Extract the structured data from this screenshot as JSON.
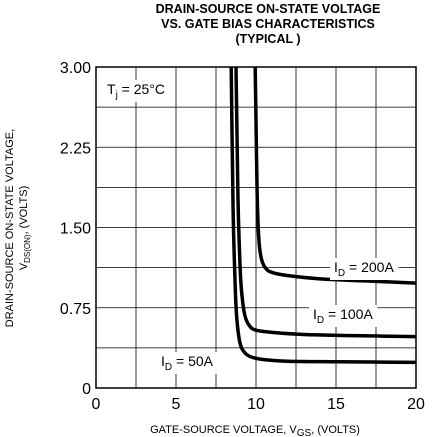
{
  "chart_data": {
    "type": "line",
    "title": [
      "DRAIN-SOURCE ON-STATE VOLTAGE",
      "VS. GATE BIAS CHARACTERISTICS",
      "(TYPICAL )"
    ],
    "xlabel": {
      "main": "GATE-SOURCE VOLTAGE, V",
      "sub": "GS",
      "tail": ", (VOLTS)"
    },
    "ylabel": {
      "line1": "DRAIN-SOURCE ON-STATE VOLTAGE,",
      "line2_main": "V",
      "line2_sub": "DS(ON)",
      "line2_tail": ", (VOLTS)"
    },
    "xlim": [
      0,
      20
    ],
    "ylim": [
      0,
      3
    ],
    "xticks": [
      "0",
      "5",
      "10",
      "15",
      "20"
    ],
    "yticks": [
      "0",
      "0.75",
      "1.50",
      "2.25",
      "3.00"
    ],
    "grid": true,
    "annotation": {
      "main": "T",
      "sub": "j",
      "tail": " = 25°C"
    },
    "series": [
      {
        "name": {
          "main": "I",
          "sub": "D",
          "tail": " = 50A"
        },
        "x": [
          8.45,
          8.5,
          8.55,
          8.6,
          8.7,
          8.8,
          9.0,
          9.3,
          9.7,
          10.5,
          12,
          15,
          20
        ],
        "y": [
          3.0,
          2.4,
          1.85,
          1.45,
          0.95,
          0.65,
          0.42,
          0.33,
          0.29,
          0.265,
          0.25,
          0.245,
          0.24
        ]
      },
      {
        "name": {
          "main": "I",
          "sub": "D",
          "tail": " = 100A"
        },
        "x": [
          8.75,
          8.8,
          8.85,
          8.9,
          9.0,
          9.1,
          9.3,
          9.6,
          10.0,
          11,
          13,
          16,
          20
        ],
        "y": [
          3.0,
          2.5,
          2.0,
          1.6,
          1.15,
          0.9,
          0.68,
          0.58,
          0.54,
          0.52,
          0.5,
          0.49,
          0.48
        ]
      },
      {
        "name": {
          "main": "I",
          "sub": "D",
          "tail": " = 200A"
        },
        "x": [
          9.95,
          10.0,
          10.05,
          10.1,
          10.2,
          10.35,
          10.6,
          11.0,
          12,
          14,
          17,
          20
        ],
        "y": [
          3.0,
          2.5,
          2.0,
          1.65,
          1.35,
          1.2,
          1.12,
          1.08,
          1.05,
          1.02,
          1.0,
          0.98
        ]
      }
    ]
  }
}
